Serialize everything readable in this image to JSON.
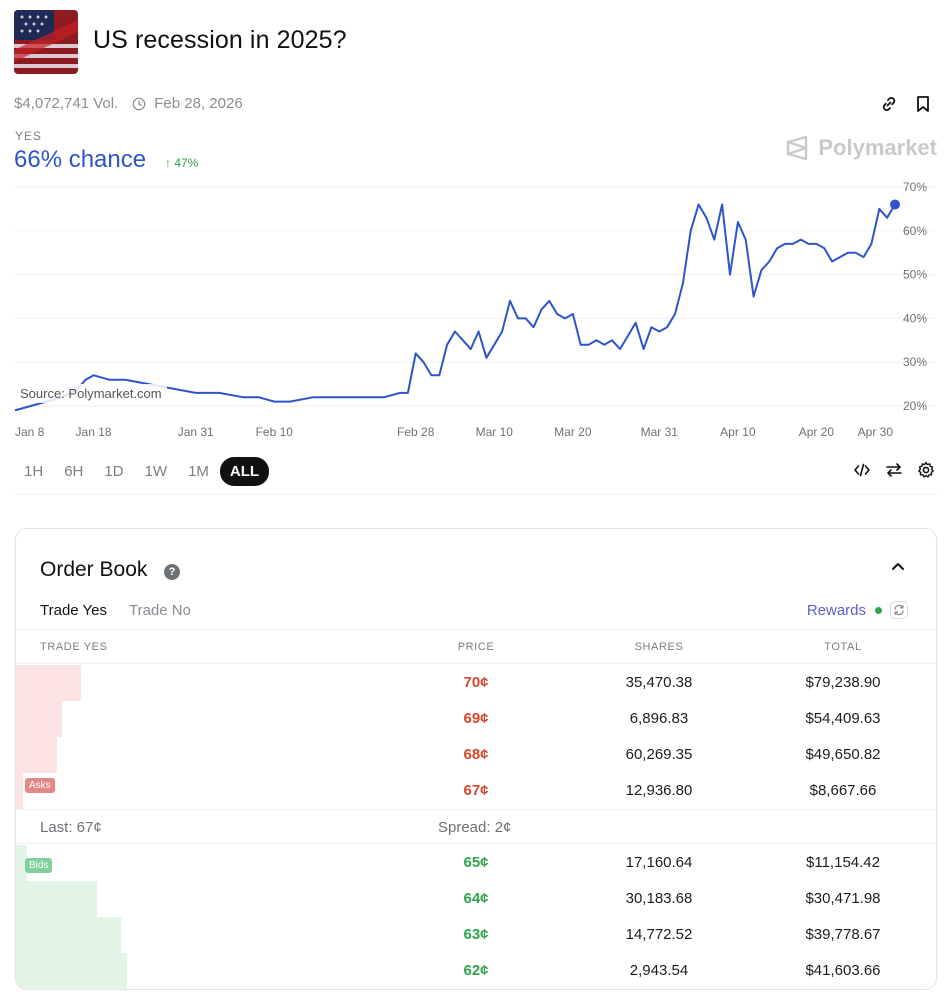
{
  "market": {
    "title": "US recession in 2025?",
    "volume": "$4,072,741 Vol.",
    "end_date": "Feb 28, 2026",
    "outcome_label": "YES",
    "chance": "66% chance",
    "change": "↑ 47%",
    "brand": "Polymarket"
  },
  "chart_source": "Source: Polymarket.com",
  "chart_data": {
    "type": "line",
    "x_tick_labels": [
      "Jan 8",
      "Jan 18",
      "Jan 31",
      "Feb 10",
      "Feb 28",
      "Mar 10",
      "Mar 20",
      "Mar 31",
      "Apr 10",
      "Apr 20",
      "Apr 30"
    ],
    "y_tick_labels": [
      "70%",
      "60%",
      "50%",
      "40%",
      "30%",
      "20%"
    ],
    "ylim": [
      20,
      70
    ],
    "grid": true,
    "color": "#2f54c9",
    "series": [
      {
        "points": [
          [
            "2025-01-08",
            19
          ],
          [
            "2025-01-10",
            20
          ],
          [
            "2025-01-12",
            21
          ],
          [
            "2025-01-14",
            22
          ],
          [
            "2025-01-16",
            24
          ],
          [
            "2025-01-17",
            26
          ],
          [
            "2025-01-18",
            27
          ],
          [
            "2025-01-20",
            26
          ],
          [
            "2025-01-22",
            26
          ],
          [
            "2025-01-25",
            25
          ],
          [
            "2025-01-28",
            24
          ],
          [
            "2025-01-31",
            23
          ],
          [
            "2025-02-03",
            23
          ],
          [
            "2025-02-06",
            22
          ],
          [
            "2025-02-08",
            22
          ],
          [
            "2025-02-10",
            21
          ],
          [
            "2025-02-12",
            21
          ],
          [
            "2025-02-15",
            22
          ],
          [
            "2025-02-18",
            22
          ],
          [
            "2025-02-21",
            22
          ],
          [
            "2025-02-24",
            22
          ],
          [
            "2025-02-26",
            23
          ],
          [
            "2025-02-27",
            23
          ],
          [
            "2025-02-28",
            32
          ],
          [
            "2025-03-01",
            30
          ],
          [
            "2025-03-02",
            27
          ],
          [
            "2025-03-03",
            27
          ],
          [
            "2025-03-04",
            34
          ],
          [
            "2025-03-05",
            37
          ],
          [
            "2025-03-06",
            35
          ],
          [
            "2025-03-07",
            33
          ],
          [
            "2025-03-08",
            37
          ],
          [
            "2025-03-09",
            31
          ],
          [
            "2025-03-10",
            34
          ],
          [
            "2025-03-11",
            37
          ],
          [
            "2025-03-12",
            44
          ],
          [
            "2025-03-13",
            40
          ],
          [
            "2025-03-14",
            40
          ],
          [
            "2025-03-15",
            38
          ],
          [
            "2025-03-16",
            42
          ],
          [
            "2025-03-17",
            44
          ],
          [
            "2025-03-18",
            41
          ],
          [
            "2025-03-19",
            40
          ],
          [
            "2025-03-20",
            41
          ],
          [
            "2025-03-21",
            34
          ],
          [
            "2025-03-22",
            34
          ],
          [
            "2025-03-23",
            35
          ],
          [
            "2025-03-24",
            34
          ],
          [
            "2025-03-25",
            35
          ],
          [
            "2025-03-26",
            33
          ],
          [
            "2025-03-27",
            36
          ],
          [
            "2025-03-28",
            39
          ],
          [
            "2025-03-29",
            33
          ],
          [
            "2025-03-30",
            38
          ],
          [
            "2025-03-31",
            37
          ],
          [
            "2025-04-01",
            38
          ],
          [
            "2025-04-02",
            41
          ],
          [
            "2025-04-03",
            48
          ],
          [
            "2025-04-04",
            60
          ],
          [
            "2025-04-05",
            66
          ],
          [
            "2025-04-06",
            63
          ],
          [
            "2025-04-07",
            58
          ],
          [
            "2025-04-08",
            66
          ],
          [
            "2025-04-09",
            50
          ],
          [
            "2025-04-10",
            62
          ],
          [
            "2025-04-11",
            58
          ],
          [
            "2025-04-12",
            45
          ],
          [
            "2025-04-13",
            51
          ],
          [
            "2025-04-14",
            53
          ],
          [
            "2025-04-15",
            56
          ],
          [
            "2025-04-16",
            57
          ],
          [
            "2025-04-17",
            57
          ],
          [
            "2025-04-18",
            58
          ],
          [
            "2025-04-19",
            57
          ],
          [
            "2025-04-20",
            57
          ],
          [
            "2025-04-21",
            56
          ],
          [
            "2025-04-22",
            53
          ],
          [
            "2025-04-23",
            54
          ],
          [
            "2025-04-24",
            55
          ],
          [
            "2025-04-25",
            55
          ],
          [
            "2025-04-26",
            54
          ],
          [
            "2025-04-27",
            57
          ],
          [
            "2025-04-28",
            65
          ],
          [
            "2025-04-29",
            63
          ],
          [
            "2025-04-30",
            66
          ]
        ]
      }
    ]
  },
  "ranges": [
    "1H",
    "6H",
    "1D",
    "1W",
    "1M",
    "ALL"
  ],
  "active_range": "ALL",
  "order_book": {
    "title": "Order Book",
    "help": "?",
    "tabs": [
      "Trade Yes",
      "Trade No"
    ],
    "rewards": "Rewards",
    "columns": {
      "side": "TRADE YES",
      "price": "PRICE",
      "shares": "SHARES",
      "total": "TOTAL"
    },
    "asks_label": "Asks",
    "bids_label": "Bids",
    "asks": [
      {
        "price": "70¢",
        "shares": "35,470.38",
        "total": "$79,238.90",
        "depth": 0.07
      },
      {
        "price": "69¢",
        "shares": "6,896.83",
        "total": "$54,409.63",
        "depth": 0.05
      },
      {
        "price": "68¢",
        "shares": "60,269.35",
        "total": "$49,650.82",
        "depth": 0.045
      },
      {
        "price": "67¢",
        "shares": "12,936.80",
        "total": "$8,667.66",
        "depth": 0.008
      }
    ],
    "last": "Last: 67¢",
    "spread": "Spread: 2¢",
    "bids": [
      {
        "price": "65¢",
        "shares": "17,160.64",
        "total": "$11,154.42",
        "depth": 0.012
      },
      {
        "price": "64¢",
        "shares": "30,183.68",
        "total": "$30,471.98",
        "depth": 0.088
      },
      {
        "price": "63¢",
        "shares": "14,772.52",
        "total": "$39,778.67",
        "depth": 0.114
      },
      {
        "price": "62¢",
        "shares": "2,943.54",
        "total": "$41,603.66",
        "depth": 0.12
      }
    ]
  }
}
